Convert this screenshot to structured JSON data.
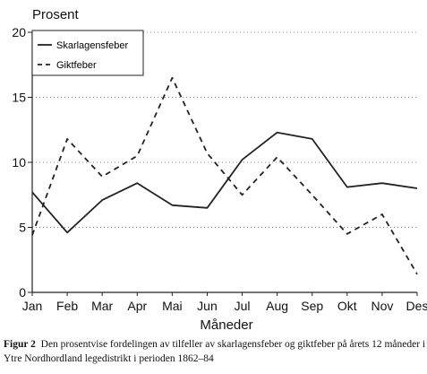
{
  "chart_data": {
    "type": "line",
    "ylabel": "Prosent",
    "xlabel": "Måneder",
    "ylim": [
      0,
      20
    ],
    "yticks": [
      0,
      5,
      10,
      15,
      20
    ],
    "categories": [
      "Jan",
      "Feb",
      "Mar",
      "Apr",
      "Mai",
      "Jun",
      "Jul",
      "Aug",
      "Sep",
      "Okt",
      "Nov",
      "Des"
    ],
    "series": [
      {
        "name": "Skarlagensfeber",
        "style": "solid",
        "values": [
          7.7,
          4.6,
          7.1,
          8.4,
          6.7,
          6.5,
          10.2,
          12.3,
          11.8,
          8.1,
          8.4,
          8.0
        ]
      },
      {
        "name": "Giktfeber",
        "style": "dashed",
        "values": [
          4.4,
          11.8,
          8.9,
          10.5,
          16.5,
          10.7,
          7.5,
          10.4,
          7.5,
          4.5,
          6.0,
          1.4
        ]
      }
    ],
    "grid": "dotted horizontal",
    "legend_position": "top-left",
    "line_color": "#222222"
  },
  "caption": {
    "label": "Figur 2",
    "text": "Den prosentvise fordelingen av tilfeller av skarlagensfeber og giktfeber på årets 12 måneder i Ytre Nordhordland legedistrikt i perioden 1862–84"
  }
}
